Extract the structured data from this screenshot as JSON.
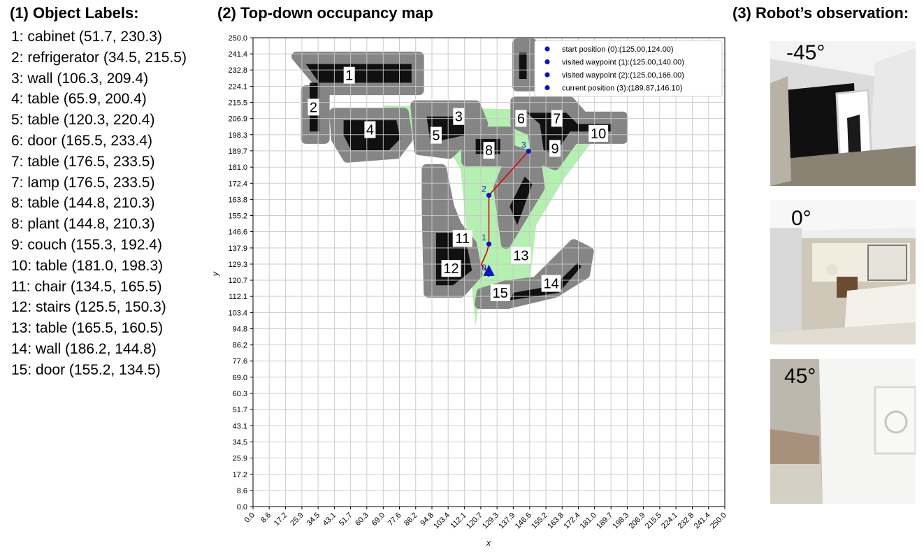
{
  "titles": {
    "labels": "(1) Object Labels:",
    "map": "(2) Top-down occupancy map",
    "observation": "(3) Robot’s observation:"
  },
  "object_labels": [
    "1: cabinet (51.7, 230.3)",
    "2: refrigerator (34.5, 215.5)",
    "3: wall (106.3, 209.4)",
    "4: table (65.9, 200.4)",
    "5: table (120.3, 220.4)",
    "6: door (165.5, 233.4)",
    "7: table (176.5, 233.5)",
    "7: lamp (176.5, 233.5)",
    "8: table (144.8, 210.3)",
    "8: plant (144.8, 210.3)",
    "9: couch (155.3, 192.4)",
    "10: table (181.0, 198.3)",
    "11: chair (134.5, 165.5)",
    "12: stairs (125.5, 150.3)",
    "13: table (165.5, 160.5)",
    "14: wall (186.2, 144.8)",
    "15: door (155.2, 134.5)"
  ],
  "map": {
    "xlabel": "x",
    "ylabel": "y",
    "ticks": [
      "0.0",
      "8.6",
      "17.2",
      "25.9",
      "34.5",
      "43.1",
      "51.7",
      "60.3",
      "69.0",
      "77.6",
      "86.2",
      "94.8",
      "103.4",
      "112.1",
      "120.7",
      "129.3",
      "137.9",
      "146.6",
      "155.2",
      "163.8",
      "172.4",
      "181.0",
      "189.7",
      "198.3",
      "206.9",
      "215.5",
      "224.1",
      "232.8",
      "241.4",
      "250.0"
    ],
    "range": [
      0,
      250
    ],
    "legend": [
      "start position (0):(125.00,124.00)",
      "visited waypoint (1):(125.00,140.00)",
      "visited waypoint (2):(125.00,166.00)",
      "current position (3):(189.87,146.10)"
    ],
    "waypoint_labels": [
      "0",
      "1",
      "2",
      "3"
    ],
    "object_tags": [
      {
        "text": "1",
        "x": 51,
        "y": 230
      },
      {
        "text": "2",
        "x": 32,
        "y": 213
      },
      {
        "text": "3",
        "x": 109,
        "y": 208
      },
      {
        "text": "4",
        "x": 62,
        "y": 201
      },
      {
        "text": "5",
        "x": 97,
        "y": 198
      },
      {
        "text": "6",
        "x": 142,
        "y": 207
      },
      {
        "text": "7",
        "x": 161,
        "y": 207
      },
      {
        "text": "8",
        "x": 125,
        "y": 190
      },
      {
        "text": "9",
        "x": 160,
        "y": 191
      },
      {
        "text": "10",
        "x": 183,
        "y": 199
      },
      {
        "text": "11",
        "x": 111,
        "y": 143
      },
      {
        "text": "12",
        "x": 105,
        "y": 127
      },
      {
        "text": "13",
        "x": 142,
        "y": 134
      },
      {
        "text": "14",
        "x": 158,
        "y": 119
      },
      {
        "text": "15",
        "x": 131,
        "y": 114
      }
    ],
    "colors": {
      "free": "#b4f0b0",
      "inflated": "#858585",
      "obstacle": "#000000",
      "path": "#e00000",
      "waypoint": "#0a14c8",
      "grid": "#c8c8c8"
    }
  },
  "observations": [
    {
      "angle": "-45°"
    },
    {
      "angle": "0°"
    },
    {
      "angle": "45°"
    }
  ]
}
